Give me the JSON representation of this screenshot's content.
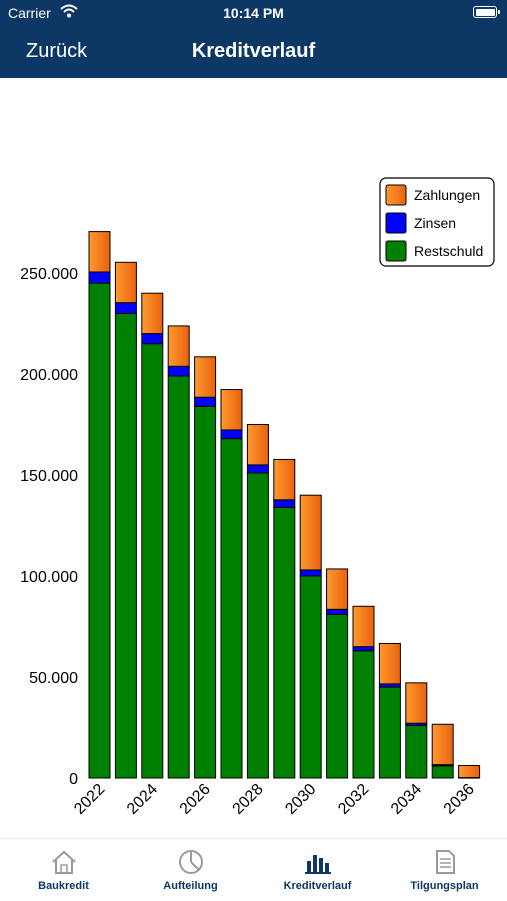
{
  "status_bar": {
    "carrier": "Carrier",
    "time": "10:14 PM"
  },
  "nav": {
    "back_label": "Zurück",
    "title": "Kreditverlauf"
  },
  "tabs": [
    {
      "label": "Baukredit",
      "icon": "house-icon",
      "active": false
    },
    {
      "label": "Aufteilung",
      "icon": "pie-chart-icon",
      "active": false
    },
    {
      "label": "Kreditverlauf",
      "icon": "bar-chart-icon",
      "active": true
    },
    {
      "label": "Tilgungsplan",
      "icon": "document-icon",
      "active": false
    }
  ],
  "colors": {
    "accent": "#0d3866",
    "zahlungen": "#f07e1d",
    "zinsen": "#0000ff",
    "restschuld": "#008000"
  },
  "chart_data": {
    "type": "bar",
    "stacked": true,
    "title": "",
    "xlabel": "",
    "ylabel": "",
    "ylim": [
      0,
      270000
    ],
    "y_ticks": [
      "0",
      "50.000",
      "100.000",
      "150.000",
      "200.000",
      "250.000"
    ],
    "y_tick_values": [
      0,
      50000,
      100000,
      150000,
      200000,
      250000
    ],
    "x_tick_labels": [
      "2022",
      "2024",
      "2026",
      "2028",
      "2030",
      "2032",
      "2034",
      "2036"
    ],
    "categories": [
      "2022",
      "2023",
      "2024",
      "2025",
      "2026",
      "2027",
      "2028",
      "2029",
      "2030",
      "2031",
      "2032",
      "2033",
      "2034",
      "2035",
      "2036"
    ],
    "legend_position": "top-right",
    "series": [
      {
        "name": "Restschuld",
        "color": "#008000",
        "values": [
          245000,
          230000,
          215000,
          199000,
          184000,
          168000,
          151000,
          134000,
          100000,
          81000,
          63000,
          45000,
          26000,
          6000,
          0
        ]
      },
      {
        "name": "Zinsen",
        "color": "#0000ff",
        "values": [
          5500,
          5300,
          5000,
          4800,
          4500,
          4300,
          4000,
          3700,
          3000,
          2500,
          2000,
          1600,
          1100,
          600,
          200
        ]
      },
      {
        "name": "Zahlungen",
        "color": "#f07e1d",
        "values": [
          20000,
          20000,
          20000,
          20000,
          20000,
          20000,
          20000,
          20000,
          37000,
          20000,
          20000,
          20000,
          20000,
          20000,
          6000
        ]
      }
    ]
  }
}
